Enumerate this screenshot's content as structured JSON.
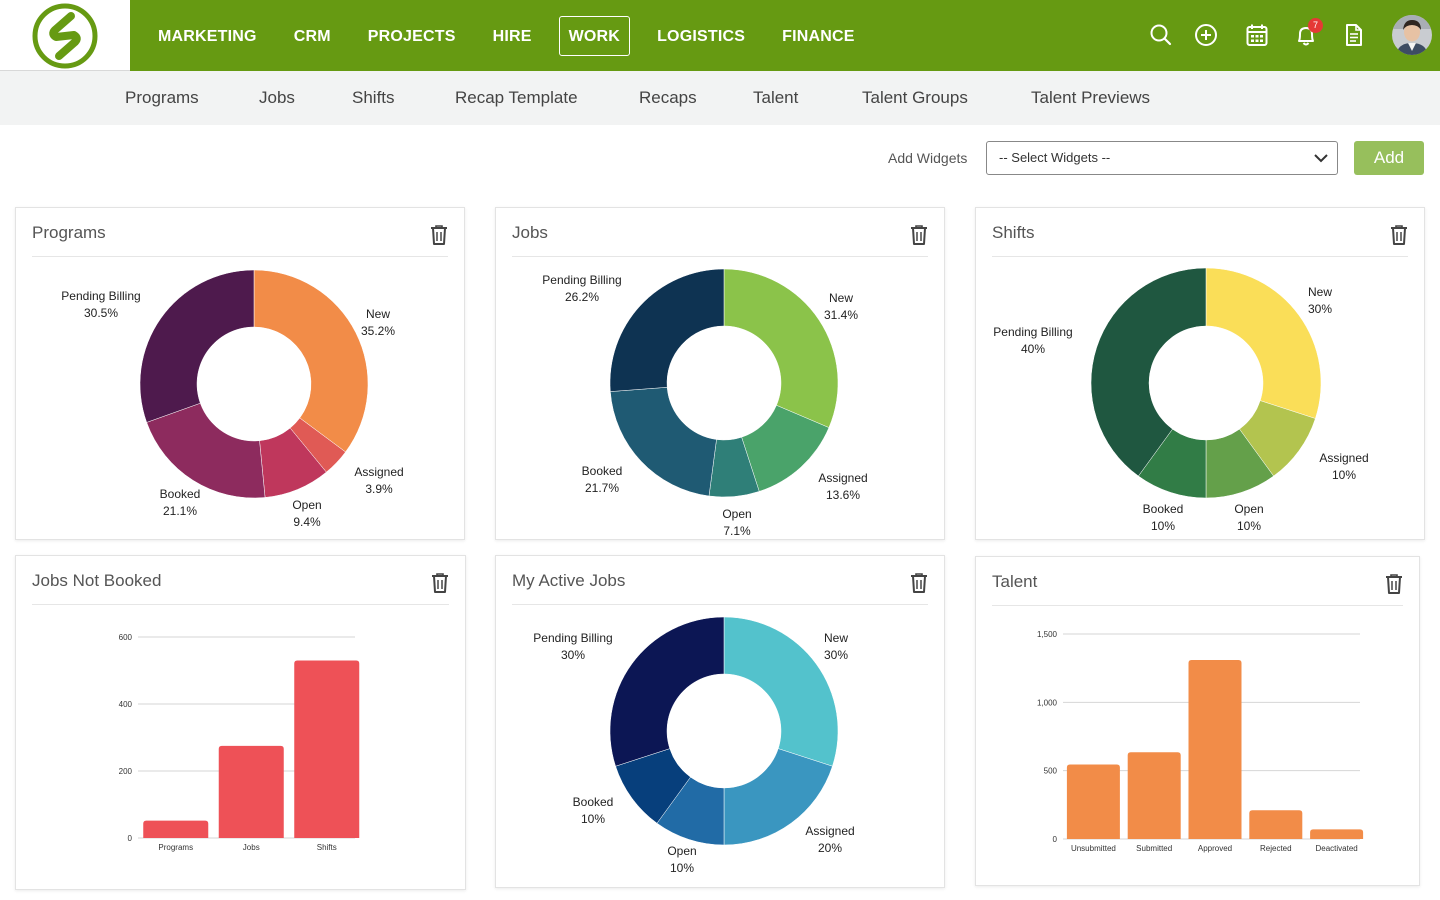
{
  "nav": {
    "items": [
      "MARKETING",
      "CRM",
      "PROJECTS",
      "HIRE",
      "WORK",
      "LOGISTICS",
      "FINANCE"
    ],
    "active": "WORK",
    "notification_count": "7",
    "icons": [
      "search-icon",
      "add-icon",
      "calendar-icon",
      "bell-icon",
      "document-icon"
    ]
  },
  "subnav": {
    "items": [
      "Programs",
      "Jobs",
      "Shifts",
      "Recap Template",
      "Recaps",
      "Talent",
      "Talent Groups",
      "Talent Previews"
    ]
  },
  "widgets": {
    "label": "Add Widgets",
    "select_value": "-- Select Widgets --",
    "add_label": "Add"
  },
  "colors": {
    "brand": "#669a12",
    "add_button": "#97bf5c"
  },
  "cards": [
    {
      "title": "Programs"
    },
    {
      "title": "Jobs"
    },
    {
      "title": "Shifts"
    },
    {
      "title": "Jobs Not Booked"
    },
    {
      "title": "My Active Jobs"
    },
    {
      "title": "Talent"
    }
  ],
  "chart_data": [
    {
      "type": "pie",
      "title": "Programs",
      "slices": [
        {
          "label": "New",
          "value": 35.2,
          "pct": "35.2%",
          "color": "#f28c48"
        },
        {
          "label": "Assigned",
          "value": 3.9,
          "pct": "3.9%",
          "color": "#e05a55"
        },
        {
          "label": "Open",
          "value": 9.4,
          "pct": "9.4%",
          "color": "#bf375c"
        },
        {
          "label": "Booked",
          "value": 21.1,
          "pct": "21.1%",
          "color": "#8d2b5e"
        },
        {
          "label": "Pending Billing",
          "value": 30.5,
          "pct": "30.5%",
          "color": "#4e1a4d"
        }
      ]
    },
    {
      "type": "pie",
      "title": "Jobs",
      "slices": [
        {
          "label": "New",
          "value": 31.4,
          "pct": "31.4%",
          "color": "#8bc34a"
        },
        {
          "label": "Assigned",
          "value": 13.6,
          "pct": "13.6%",
          "color": "#4aa36a"
        },
        {
          "label": "Open",
          "value": 7.1,
          "pct": "7.1%",
          "color": "#2f7f78"
        },
        {
          "label": "Booked",
          "value": 21.7,
          "pct": "21.7%",
          "color": "#1f5a73"
        },
        {
          "label": "Pending Billing",
          "value": 26.2,
          "pct": "26.2%",
          "color": "#0e3352"
        }
      ]
    },
    {
      "type": "pie",
      "title": "Shifts",
      "slices": [
        {
          "label": "New",
          "value": 30,
          "pct": "30%",
          "color": "#fade58"
        },
        {
          "label": "Assigned",
          "value": 10,
          "pct": "10%",
          "color": "#b3c44f"
        },
        {
          "label": "Open",
          "value": 10,
          "pct": "10%",
          "color": "#64a04a"
        },
        {
          "label": "Booked",
          "value": 10,
          "pct": "10%",
          "color": "#317c46"
        },
        {
          "label": "Pending Billing",
          "value": 40,
          "pct": "40%",
          "color": "#1f5740"
        }
      ]
    },
    {
      "type": "bar",
      "title": "Jobs Not Booked",
      "categories": [
        "Programs",
        "Jobs",
        "Shifts"
      ],
      "values": [
        52,
        275,
        530
      ],
      "ylim": [
        0,
        600
      ],
      "yticks": [
        0,
        200,
        400,
        600
      ],
      "ytick_labels": [
        "0",
        "200",
        "400",
        "600"
      ],
      "color": "#ee5157",
      "grid": true
    },
    {
      "type": "pie",
      "title": "My Active Jobs",
      "slices": [
        {
          "label": "New",
          "value": 30,
          "pct": "30%",
          "color": "#53c2cc"
        },
        {
          "label": "Assigned",
          "value": 20,
          "pct": "20%",
          "color": "#3a96c0"
        },
        {
          "label": "Open",
          "value": 10,
          "pct": "10%",
          "color": "#216ba6"
        },
        {
          "label": "Booked",
          "value": 10,
          "pct": "10%",
          "color": "#073f7c"
        },
        {
          "label": "Pending Billing",
          "value": 30,
          "pct": "30%",
          "color": "#0c1654"
        }
      ]
    },
    {
      "type": "bar",
      "title": "Talent",
      "categories": [
        "Unsubmitted",
        "Submitted",
        "Approved",
        "Rejected",
        "Deactivated"
      ],
      "values": [
        545,
        635,
        1310,
        210,
        70
      ],
      "ylim": [
        0,
        1500
      ],
      "yticks": [
        0,
        500,
        1000,
        1500
      ],
      "ytick_labels": [
        "0",
        "500",
        "1,000",
        "1,500"
      ],
      "color": "#f28c48",
      "grid": true
    }
  ]
}
